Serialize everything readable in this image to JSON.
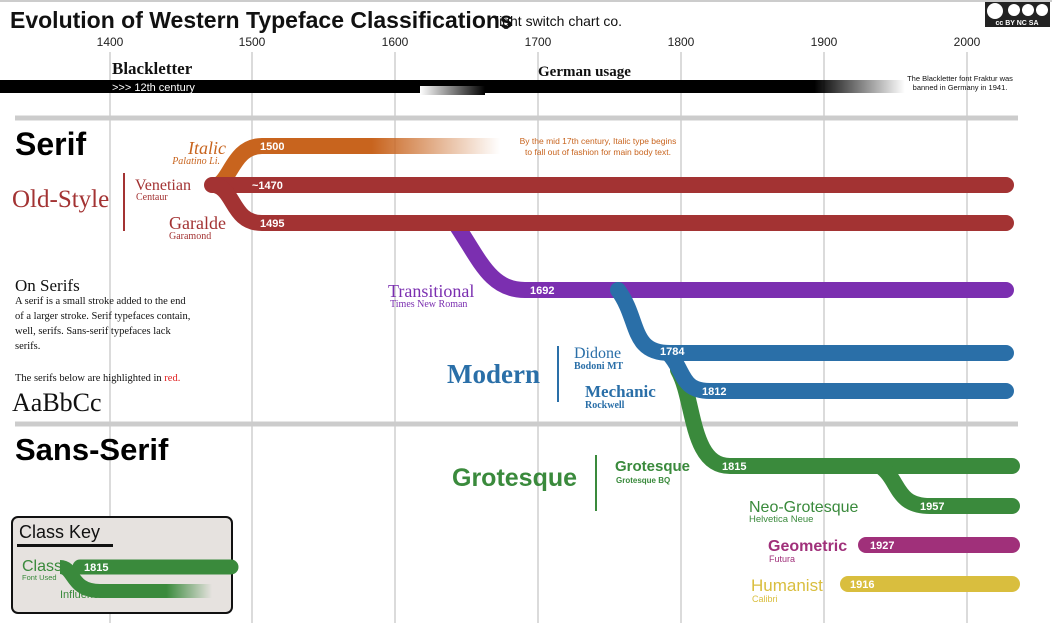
{
  "header": {
    "title": "Evolution of Western Typeface Classifications",
    "subtitle": "light switch chart co.",
    "license": "cc BY NC SA"
  },
  "axis": {
    "ticks": [
      "1400",
      "1500",
      "1600",
      "1700",
      "1800",
      "1900",
      "2000"
    ]
  },
  "blackletter": {
    "label": "Blackletter",
    "german": "German usage",
    "since": ">>> 12th century",
    "note1": "The Blackletter font Fraktur was",
    "note2": "banned in Germany in 1941."
  },
  "serif": {
    "heading": "Serif",
    "oldstyle": "Old-Style",
    "italic": {
      "name": "Italic",
      "font": "Palatino Li.",
      "year": "1500",
      "note1": "By the mid 17th century, Italic type begins",
      "note2": "to fall out of fashion for main body text."
    },
    "venetian": {
      "name": "Venetian",
      "font": "Centaur",
      "year": "~1470"
    },
    "garalde": {
      "name": "Garalde",
      "font": "Garamond",
      "year": "1495"
    },
    "transitional": {
      "name": "Transitional",
      "font": "Times New Roman",
      "year": "1692"
    },
    "modern": "Modern",
    "didone": {
      "name": "Didone",
      "font": "Bodoni MT",
      "year": "1784"
    },
    "mechanic": {
      "name": "Mechanic",
      "font": "Rockwell",
      "year": "1812"
    }
  },
  "on_serifs": {
    "title": "On Serifs",
    "lines": [
      "A serif is a small stroke added to the end",
      "of a larger stroke. Serif typefaces contain,",
      "well, serifs. Sans-serif typefaces lack",
      "serifs."
    ],
    "highlight_prefix": "The serifs below are highlighted in",
    "highlight_word": "red.",
    "sample": "AaBbCc"
  },
  "sans": {
    "heading": "Sans-Serif",
    "grotesque_class": "Grotesque",
    "grotesque": {
      "name": "Grotesque",
      "font": "Grotesque BQ",
      "year": "1815"
    },
    "neo": {
      "name": "Neo-Grotesque",
      "font": "Helvetica Neue",
      "year": "1957"
    },
    "geometric": {
      "name": "Geometric",
      "font": "Futura",
      "year": "1927"
    },
    "humanist": {
      "name": "Humanist",
      "font": "Calibri",
      "year": "1916"
    }
  },
  "key": {
    "title": "Class Key",
    "class": "Class",
    "font_used": "Font Used",
    "year": "1815",
    "influence": "Influence"
  },
  "colors": {
    "italic": "#c8641e",
    "oldstyle": "#a33333",
    "transitional": "#7b2fb0",
    "modern": "#2a6fa8",
    "grotesque": "#3a8a3c",
    "geometric": "#a0307a",
    "humanist": "#d9be3e"
  }
}
